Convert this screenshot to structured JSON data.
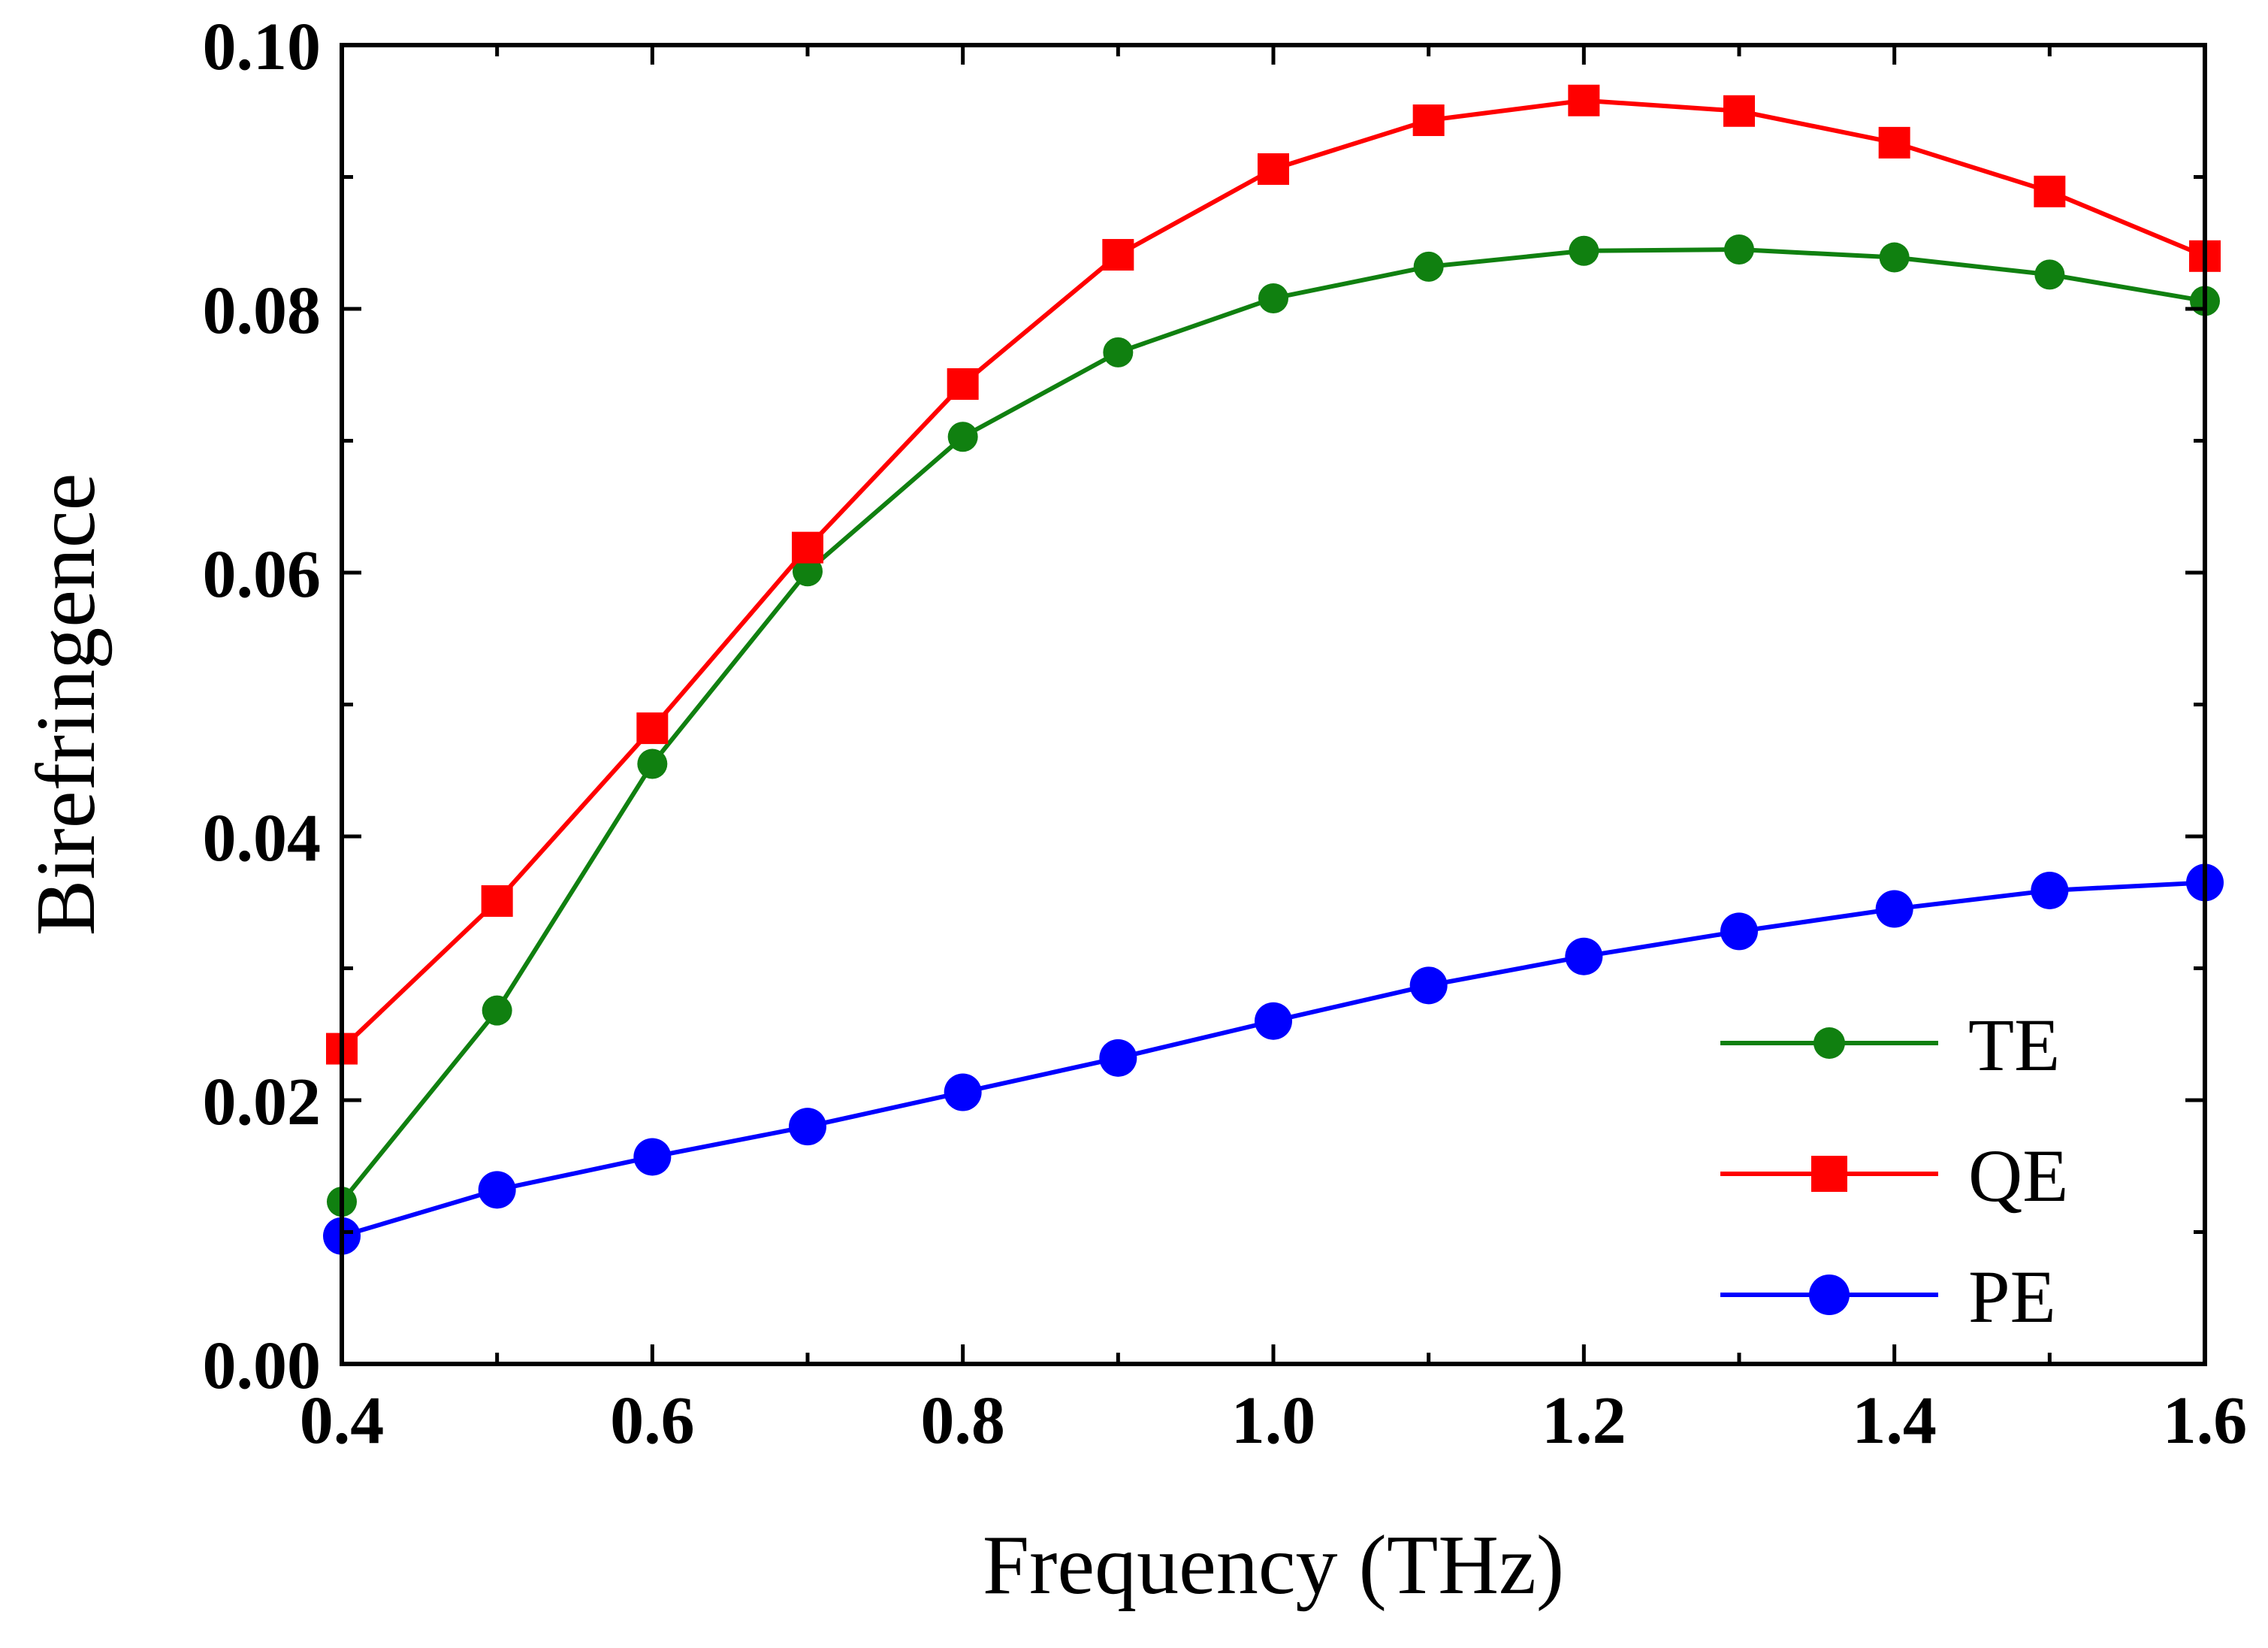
{
  "chart_data": {
    "type": "line",
    "title": "",
    "xlabel": "Frequency (THz)",
    "ylabel": "Birefringence",
    "xlim": [
      0.4,
      1.6
    ],
    "ylim": [
      0.0,
      0.1
    ],
    "x_ticks": [
      0.4,
      0.6,
      0.8,
      1.0,
      1.2,
      1.4,
      1.6
    ],
    "x_tick_labels": [
      "0.4",
      "0.6",
      "0.8",
      "1.0",
      "1.2",
      "1.4",
      "1.6"
    ],
    "y_ticks": [
      0.0,
      0.02,
      0.04,
      0.06,
      0.08,
      0.1
    ],
    "y_tick_labels": [
      "0.00",
      "0.02",
      "0.04",
      "0.06",
      "0.08",
      "0.10"
    ],
    "grid": false,
    "legend_position": "bottom-right",
    "x": [
      0.4,
      0.5,
      0.6,
      0.7,
      0.8,
      0.9,
      1.0,
      1.1,
      1.2,
      1.3,
      1.4,
      1.5,
      1.6
    ],
    "series": [
      {
        "name": "TE",
        "color": "#108010",
        "marker": "circle",
        "values": [
          0.0123,
          0.0268,
          0.0455,
          0.0601,
          0.0703,
          0.0767,
          0.0808,
          0.0832,
          0.0844,
          0.0845,
          0.0839,
          0.0826,
          0.0806
        ]
      },
      {
        "name": "QE",
        "color": "#ff0000",
        "marker": "square",
        "values": [
          0.0239,
          0.0351,
          0.0482,
          0.0619,
          0.0743,
          0.0841,
          0.0906,
          0.0943,
          0.0958,
          0.095,
          0.0926,
          0.0889,
          0.084
        ]
      },
      {
        "name": "PE",
        "color": "#0000ff",
        "marker": "circle",
        "values": [
          0.0097,
          0.0132,
          0.0157,
          0.018,
          0.0206,
          0.0232,
          0.026,
          0.0287,
          0.0309,
          0.0328,
          0.0345,
          0.0359,
          0.0365
        ]
      }
    ]
  }
}
